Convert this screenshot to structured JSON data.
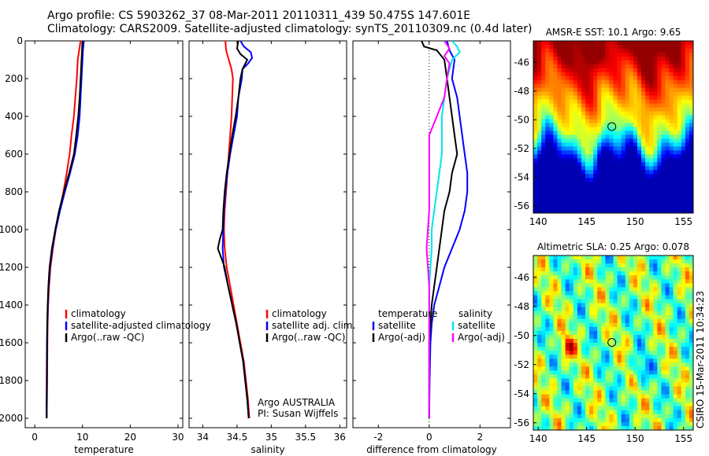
{
  "header": {
    "line1": "Argo profile: CS 5903262_37 08-Mar-2011 20110311_439 50.475S 147.601E",
    "line2": "Climatology: CARS2009. Satellite-adjusted climatology: synTS_20110309.nc (0.4d later)"
  },
  "side_credit": "CSIRO 15-Mar-2011 10:34:23",
  "colors": {
    "climatology": "#ff0000",
    "satellite": "#0000ff",
    "argo": "#000000",
    "satellite_diff": "#00e5ee",
    "argo_adj_diff": "#ff00ff"
  },
  "chart_data": [
    {
      "type": "line",
      "id": "temperature",
      "xlabel": "temperature",
      "xlim": [
        -2,
        31
      ],
      "ylim": [
        0,
        2050
      ],
      "y_inverted": true,
      "xticks": [
        0,
        10,
        20,
        30
      ],
      "xtick_labels": [
        "0",
        "10",
        "20",
        "30"
      ],
      "yticks": [
        0,
        200,
        400,
        600,
        800,
        1000,
        1200,
        1400,
        1600,
        1800,
        2000
      ],
      "ytick_labels": [
        "0",
        "200",
        "400",
        "600",
        "800",
        "1000",
        "1200",
        "1400",
        "1600",
        "1800",
        "2000"
      ],
      "legend_labels": [
        "climatology",
        "satellite-adjusted climatology",
        "Argo(..raw -QC)"
      ],
      "series": [
        {
          "name": "climatology",
          "color": "#ff0000",
          "points": [
            [
              9.6,
              0
            ],
            [
              9.3,
              50
            ],
            [
              9.0,
              100
            ],
            [
              8.8,
              200
            ],
            [
              8.5,
              300
            ],
            [
              8.2,
              400
            ],
            [
              7.7,
              500
            ],
            [
              7.3,
              600
            ],
            [
              6.7,
              700
            ],
            [
              6.0,
              800
            ],
            [
              5.2,
              900
            ],
            [
              4.4,
              1000
            ],
            [
              3.8,
              1100
            ],
            [
              3.3,
              1200
            ],
            [
              3.0,
              1300
            ],
            [
              2.8,
              1400
            ],
            [
              2.7,
              1500
            ],
            [
              2.65,
              1600
            ],
            [
              2.6,
              1800
            ],
            [
              2.5,
              2000
            ]
          ]
        },
        {
          "name": "satellite-adjusted climatology",
          "color": "#0000ff",
          "points": [
            [
              10.3,
              0
            ],
            [
              10.1,
              50
            ],
            [
              10.0,
              100
            ],
            [
              9.8,
              200
            ],
            [
              9.6,
              300
            ],
            [
              9.4,
              400
            ],
            [
              9.0,
              500
            ],
            [
              8.4,
              600
            ],
            [
              7.4,
              700
            ],
            [
              6.3,
              800
            ],
            [
              5.3,
              900
            ],
            [
              4.4,
              1000
            ],
            [
              3.7,
              1100
            ],
            [
              3.2,
              1200
            ],
            [
              2.9,
              1300
            ],
            [
              2.75,
              1400
            ],
            [
              2.65,
              1500
            ],
            [
              2.6,
              1600
            ],
            [
              2.55,
              1800
            ],
            [
              2.5,
              2000
            ]
          ]
        },
        {
          "name": "Argo(..raw -QC)",
          "color": "#000000",
          "points": [
            [
              10.0,
              0
            ],
            [
              9.9,
              50
            ],
            [
              9.8,
              100
            ],
            [
              9.6,
              200
            ],
            [
              9.4,
              300
            ],
            [
              9.1,
              400
            ],
            [
              8.7,
              500
            ],
            [
              8.2,
              600
            ],
            [
              7.2,
              700
            ],
            [
              6.1,
              800
            ],
            [
              5.1,
              900
            ],
            [
              4.3,
              1000
            ],
            [
              3.6,
              1100
            ],
            [
              3.1,
              1200
            ],
            [
              2.85,
              1300
            ],
            [
              2.7,
              1400
            ],
            [
              2.6,
              1500
            ],
            [
              2.55,
              1600
            ],
            [
              2.5,
              1800
            ],
            [
              2.45,
              2000
            ]
          ]
        }
      ]
    },
    {
      "type": "line",
      "id": "salinity",
      "xlabel": "salinity",
      "xlim": [
        33.8,
        36.1
      ],
      "ylim": [
        0,
        2050
      ],
      "y_inverted": true,
      "xticks": [
        34,
        34.5,
        35,
        35.5,
        36
      ],
      "xtick_labels": [
        "34",
        "34.5",
        "35",
        "35.5",
        "36"
      ],
      "legend_labels": [
        "climatology",
        "satellite adj. clim.",
        "Argo(..raw -QC)"
      ],
      "annotation": [
        "Argo AUSTRALIA",
        "PI: Susan Wijffels"
      ],
      "series": [
        {
          "name": "climatology",
          "color": "#ff0000",
          "points": [
            [
              34.33,
              0
            ],
            [
              34.34,
              50
            ],
            [
              34.38,
              100
            ],
            [
              34.42,
              150
            ],
            [
              34.44,
              200
            ],
            [
              34.43,
              300
            ],
            [
              34.42,
              400
            ],
            [
              34.4,
              500
            ],
            [
              34.38,
              600
            ],
            [
              34.36,
              700
            ],
            [
              34.34,
              800
            ],
            [
              34.32,
              900
            ],
            [
              34.31,
              1000
            ],
            [
              34.32,
              1100
            ],
            [
              34.35,
              1200
            ],
            [
              34.4,
              1300
            ],
            [
              34.45,
              1400
            ],
            [
              34.5,
              1500
            ],
            [
              34.55,
              1600
            ],
            [
              34.6,
              1700
            ],
            [
              34.63,
              1800
            ],
            [
              34.66,
              1900
            ],
            [
              34.68,
              2000
            ]
          ]
        },
        {
          "name": "satellite adj. clim.",
          "color": "#0000ff",
          "points": [
            [
              34.55,
              0
            ],
            [
              34.6,
              30
            ],
            [
              34.7,
              60
            ],
            [
              34.72,
              90
            ],
            [
              34.66,
              120
            ],
            [
              34.58,
              150
            ],
            [
              34.57,
              200
            ],
            [
              34.52,
              300
            ],
            [
              34.5,
              400
            ],
            [
              34.45,
              500
            ],
            [
              34.4,
              600
            ],
            [
              34.36,
              700
            ],
            [
              34.33,
              800
            ],
            [
              34.31,
              900
            ],
            [
              34.3,
              1000
            ],
            [
              34.29,
              1100
            ],
            [
              34.31,
              1200
            ],
            [
              34.37,
              1300
            ],
            [
              34.43,
              1400
            ],
            [
              34.49,
              1500
            ],
            [
              34.54,
              1600
            ],
            [
              34.59,
              1700
            ],
            [
              34.62,
              1800
            ],
            [
              34.65,
              1900
            ],
            [
              34.67,
              2000
            ]
          ]
        },
        {
          "name": "Argo(..raw -QC)",
          "color": "#000000",
          "points": [
            [
              34.52,
              0
            ],
            [
              34.5,
              40
            ],
            [
              34.55,
              70
            ],
            [
              34.65,
              100
            ],
            [
              34.58,
              150
            ],
            [
              34.55,
              200
            ],
            [
              34.52,
              300
            ],
            [
              34.48,
              400
            ],
            [
              34.43,
              500
            ],
            [
              34.39,
              600
            ],
            [
              34.35,
              700
            ],
            [
              34.32,
              800
            ],
            [
              34.3,
              900
            ],
            [
              34.29,
              1000
            ],
            [
              34.25,
              1050
            ],
            [
              34.22,
              1100
            ],
            [
              34.27,
              1150
            ],
            [
              34.32,
              1200
            ],
            [
              34.37,
              1300
            ],
            [
              34.43,
              1400
            ],
            [
              34.49,
              1500
            ],
            [
              34.54,
              1600
            ],
            [
              34.59,
              1700
            ],
            [
              34.62,
              1800
            ],
            [
              34.65,
              1900
            ],
            [
              34.67,
              2000
            ]
          ]
        }
      ]
    },
    {
      "type": "line",
      "id": "difference",
      "xlabel": "difference from climatology",
      "xlim": [
        -3,
        3.2
      ],
      "ylim": [
        0,
        2050
      ],
      "y_inverted": true,
      "zero_line": true,
      "xticks": [
        -2,
        0,
        2
      ],
      "xtick_labels": [
        "-2",
        "0",
        "2"
      ],
      "legend_groups": [
        {
          "title": "temperature",
          "labels": [
            "satellite",
            "Argo(-adj)"
          ]
        },
        {
          "title": "salinity",
          "labels": [
            "satellite",
            "Argo(-adj)"
          ]
        }
      ],
      "series": [
        {
          "name": "temperature satellite",
          "color": "#0000ff",
          "points": [
            [
              0.7,
              0
            ],
            [
              0.8,
              50
            ],
            [
              1.0,
              100
            ],
            [
              0.9,
              200
            ],
            [
              1.1,
              300
            ],
            [
              1.2,
              400
            ],
            [
              1.3,
              500
            ],
            [
              1.4,
              600
            ],
            [
              1.5,
              700
            ],
            [
              1.5,
              800
            ],
            [
              1.4,
              900
            ],
            [
              1.2,
              1000
            ],
            [
              0.9,
              1100
            ],
            [
              0.6,
              1200
            ],
            [
              0.4,
              1300
            ],
            [
              0.2,
              1400
            ],
            [
              0.1,
              1500
            ],
            [
              0.05,
              1600
            ],
            [
              0.02,
              1800
            ],
            [
              0.0,
              2000
            ]
          ]
        },
        {
          "name": "temperature Argo(-adj)",
          "color": "#000000",
          "points": [
            [
              -0.3,
              0
            ],
            [
              -0.2,
              30
            ],
            [
              0.3,
              50
            ],
            [
              0.6,
              100
            ],
            [
              0.7,
              200
            ],
            [
              0.8,
              300
            ],
            [
              0.9,
              400
            ],
            [
              1.0,
              500
            ],
            [
              1.1,
              600
            ],
            [
              0.9,
              700
            ],
            [
              0.8,
              800
            ],
            [
              0.6,
              900
            ],
            [
              0.5,
              1000
            ],
            [
              0.4,
              1100
            ],
            [
              0.3,
              1200
            ],
            [
              0.2,
              1300
            ],
            [
              0.1,
              1400
            ],
            [
              0.05,
              1500
            ],
            [
              0.0,
              1600
            ],
            [
              0.0,
              1800
            ],
            [
              0.0,
              2000
            ]
          ]
        },
        {
          "name": "salinity satellite",
          "color": "#00e5ee",
          "points": [
            [
              0.9,
              0
            ],
            [
              1.1,
              30
            ],
            [
              1.2,
              60
            ],
            [
              0.9,
              100
            ],
            [
              0.7,
              200
            ],
            [
              0.6,
              300
            ],
            [
              0.5,
              400
            ],
            [
              0.5,
              500
            ],
            [
              0.5,
              600
            ],
            [
              0.4,
              700
            ],
            [
              0.3,
              800
            ],
            [
              0.2,
              900
            ],
            [
              0.1,
              1000
            ],
            [
              0.1,
              1100
            ],
            [
              0.05,
              1200
            ],
            [
              0.0,
              1300
            ],
            [
              0.0,
              1400
            ],
            [
              0.0,
              1500
            ],
            [
              0.0,
              1600
            ],
            [
              0.0,
              1800
            ],
            [
              0.0,
              2000
            ]
          ]
        },
        {
          "name": "salinity Argo(-adj)",
          "color": "#ff00ff",
          "points": [
            [
              0.6,
              0
            ],
            [
              0.8,
              40
            ],
            [
              0.6,
              80
            ],
            [
              0.8,
              120
            ],
            [
              0.7,
              200
            ],
            [
              0.6,
              300
            ],
            [
              0.3,
              400
            ],
            [
              0.0,
              500
            ],
            [
              0.0,
              600
            ],
            [
              0.0,
              700
            ],
            [
              0.0,
              800
            ],
            [
              0.0,
              900
            ],
            [
              -0.05,
              1000
            ],
            [
              -0.1,
              1100
            ],
            [
              -0.05,
              1200
            ],
            [
              0.0,
              1300
            ],
            [
              0.0,
              1400
            ],
            [
              0.0,
              1600
            ],
            [
              0.0,
              1800
            ],
            [
              0.0,
              2000
            ]
          ]
        }
      ]
    },
    {
      "type": "heatmap",
      "id": "sst",
      "title": "AMSR-E SST: 10.1 Argo: 9.65",
      "xlim": [
        139.5,
        156
      ],
      "ylim": [
        -56.5,
        -44.5
      ],
      "xticks": [
        140,
        145,
        150,
        155
      ],
      "xtick_labels": [
        "140",
        "145",
        "150",
        "155"
      ],
      "yticks": [
        -46,
        -48,
        -50,
        -52,
        -54,
        -56
      ],
      "ytick_labels": [
        "-46",
        "-48",
        "-50",
        "-52",
        "-54",
        "-56"
      ],
      "marker": [
        147.6,
        -50.475
      ]
    },
    {
      "type": "heatmap",
      "id": "sla",
      "title": "Altimetric SLA: 0.25 Argo: 0.078",
      "xlim": [
        139.5,
        156
      ],
      "ylim": [
        -56.5,
        -44.5
      ],
      "xticks": [
        140,
        145,
        150,
        155
      ],
      "xtick_labels": [
        "140",
        "145",
        "150",
        "155"
      ],
      "yticks": [
        -46,
        -48,
        -50,
        -52,
        -54,
        -56
      ],
      "ytick_labels": [
        "-46",
        "-48",
        "-50",
        "-52",
        "-54",
        "-56"
      ],
      "marker": [
        147.6,
        -50.475
      ]
    }
  ]
}
